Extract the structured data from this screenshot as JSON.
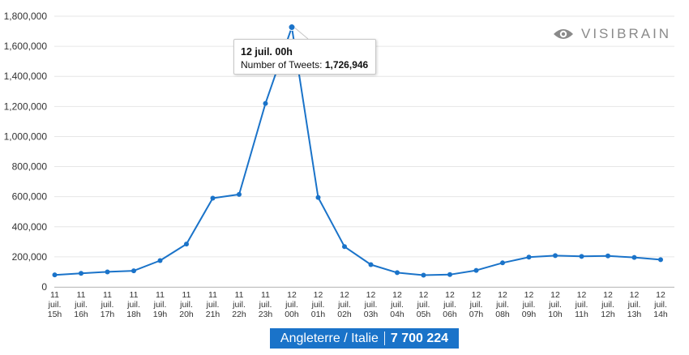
{
  "brand": {
    "name": "VISIBRAIN",
    "icon": "eye-icon"
  },
  "tooltip": {
    "title": "12 juil. 00h",
    "label": "Number of Tweets: ",
    "value": "1,726,946"
  },
  "banner": {
    "label": "Angleterre / Italie",
    "total": "7 700 224",
    "color": "#1a73c9"
  },
  "chart_data": {
    "type": "line",
    "title": "",
    "xlabel": "",
    "ylabel": "",
    "ylim": [
      0,
      1800000
    ],
    "yticks": [
      0,
      200000,
      400000,
      600000,
      800000,
      1000000,
      1200000,
      1400000,
      1600000,
      1800000
    ],
    "ytick_labels": [
      "0",
      "200,000",
      "400,000",
      "600,000",
      "800,000",
      "1,000,000",
      "1,200,000",
      "1,400,000",
      "1,600,000",
      "1,800,000"
    ],
    "grid": true,
    "series": [
      {
        "name": "Number of Tweets",
        "color": "#1a73c9",
        "values": [
          80000,
          90000,
          100000,
          107000,
          175000,
          285000,
          590000,
          615000,
          1220000,
          1726946,
          595000,
          268000,
          148000,
          95000,
          78000,
          82000,
          110000,
          160000,
          198000,
          208000,
          203000,
          206000,
          196000,
          181000
        ]
      }
    ],
    "categories": [
      [
        "11",
        "juil.",
        "15h"
      ],
      [
        "11",
        "juil.",
        "16h"
      ],
      [
        "11",
        "juil.",
        "17h"
      ],
      [
        "11",
        "juil.",
        "18h"
      ],
      [
        "11",
        "juil.",
        "19h"
      ],
      [
        "11",
        "juil.",
        "20h"
      ],
      [
        "11",
        "juil.",
        "21h"
      ],
      [
        "11",
        "juil.",
        "22h"
      ],
      [
        "11",
        "juil.",
        "23h"
      ],
      [
        "12",
        "juil.",
        "00h"
      ],
      [
        "12",
        "juil.",
        "01h"
      ],
      [
        "12",
        "juil.",
        "02h"
      ],
      [
        "12",
        "juil.",
        "03h"
      ],
      [
        "12",
        "juil.",
        "04h"
      ],
      [
        "12",
        "juil.",
        "05h"
      ],
      [
        "12",
        "juil.",
        "06h"
      ],
      [
        "12",
        "juil.",
        "07h"
      ],
      [
        "12",
        "juil.",
        "08h"
      ],
      [
        "12",
        "juil.",
        "09h"
      ],
      [
        "12",
        "juil.",
        "10h"
      ],
      [
        "12",
        "juil.",
        "11h"
      ],
      [
        "12",
        "juil.",
        "12h"
      ],
      [
        "12",
        "juil.",
        "13h"
      ],
      [
        "12",
        "juil.",
        "14h"
      ]
    ],
    "highlight_index": 9
  }
}
